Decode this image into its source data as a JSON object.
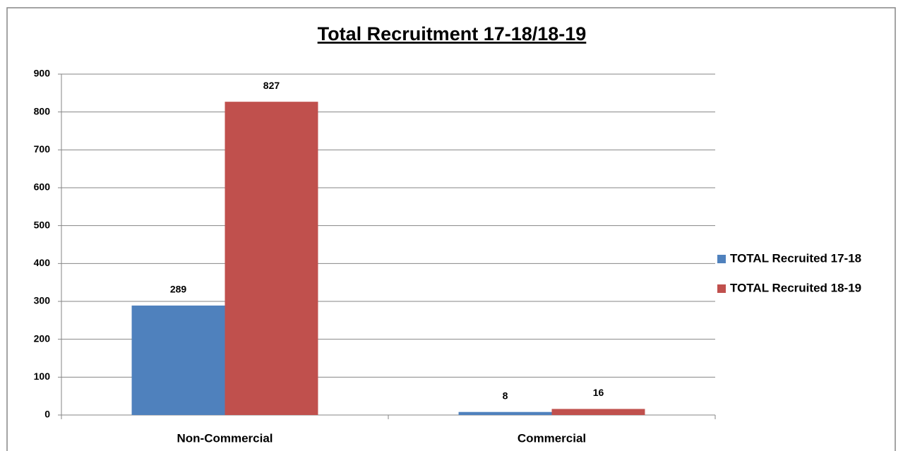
{
  "chart_data": {
    "type": "bar",
    "title": "Total Recruitment 17-18/18-19",
    "categories": [
      "Non-Commercial",
      "Commercial"
    ],
    "series": [
      {
        "name": "TOTAL Recruited 17-18",
        "color": "#4f81bd",
        "values": [
          289,
          8
        ]
      },
      {
        "name": "TOTAL Recruited 18-19",
        "color": "#c0504d",
        "values": [
          827,
          16
        ]
      }
    ],
    "ylim": [
      0,
      900
    ],
    "yticks": [
      0,
      100,
      200,
      300,
      400,
      500,
      600,
      700,
      800,
      900
    ],
    "grid": true,
    "legend": "right"
  }
}
